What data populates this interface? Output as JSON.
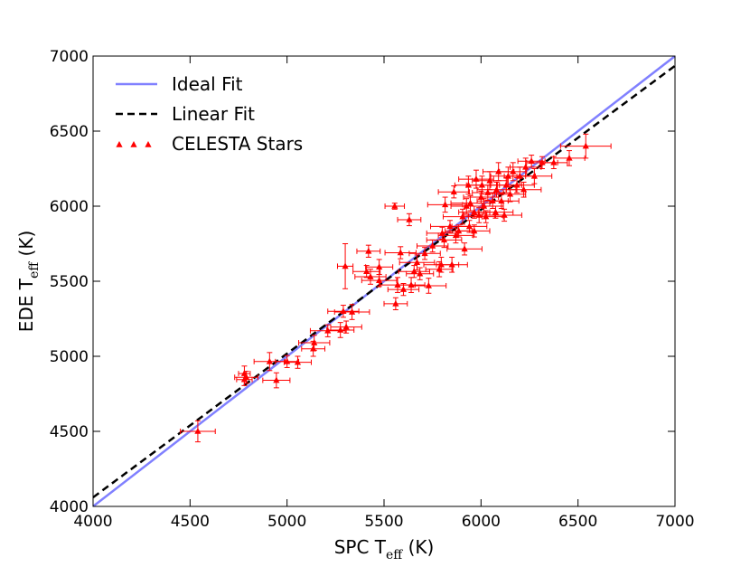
{
  "chart_data": {
    "type": "scatter",
    "x_label": {
      "main": "SPC T",
      "sub": "eff",
      "unit": " (K)"
    },
    "y_label": {
      "main": "EDE T",
      "sub": "eff",
      "unit": " (K)"
    },
    "xlim": [
      4000,
      7000
    ],
    "ylim": [
      4000,
      7000
    ],
    "xticks": [
      4000,
      4500,
      5000,
      5500,
      6000,
      6500,
      7000
    ],
    "yticks": [
      4000,
      4500,
      5000,
      5500,
      6000,
      6500,
      7000
    ],
    "legend": "upper left",
    "lines": [
      {
        "name": "Ideal Fit",
        "color": "#8080ff",
        "style": "solid",
        "x": [
          4000,
          7000
        ],
        "values": [
          4000,
          7000
        ]
      },
      {
        "name": "Linear Fit",
        "color": "#000000",
        "style": "dashed",
        "x": [
          4000,
          7000
        ],
        "values": [
          4060,
          6935
        ]
      }
    ],
    "series": [
      {
        "name": "CELESTA Stars",
        "color": "#ff0000",
        "x": [
          4540,
          4780,
          4780,
          4790,
          4910,
          4945,
          5000,
          5055,
          5135,
          5140,
          5210,
          5275,
          5305,
          5300,
          5335,
          5290,
          5420,
          5410,
          5430,
          5475,
          5475,
          5555,
          5560,
          5585,
          5630,
          5570,
          5600,
          5640,
          5655,
          5670,
          5685,
          5710,
          5730,
          5750,
          5785,
          5795,
          5800,
          5810,
          5840,
          5850,
          5860,
          5870,
          5885,
          5905,
          5915,
          5925,
          5935,
          5940,
          5945,
          5965,
          5975,
          5990,
          6000,
          6005,
          6015,
          6025,
          6035,
          6045,
          6060,
          6075,
          6080,
          6090,
          6105,
          6120,
          6130,
          6140,
          6150,
          6165,
          6185,
          6200,
          6220,
          6230,
          6260,
          6275,
          6315,
          6375,
          6455,
          6540,
          5815,
          5965
        ],
        "values": [
          4500,
          4885,
          4845,
          4860,
          4965,
          4840,
          4965,
          4960,
          5050,
          5090,
          5170,
          5175,
          5195,
          5600,
          5295,
          5300,
          5700,
          5565,
          5530,
          5505,
          5595,
          6000,
          5350,
          5690,
          5910,
          5475,
          5445,
          5475,
          5565,
          5625,
          5550,
          5685,
          5470,
          5735,
          5580,
          5610,
          5820,
          5775,
          5865,
          5610,
          6095,
          5805,
          5835,
          5930,
          5715,
          6000,
          6140,
          5865,
          6020,
          5960,
          6180,
          5940,
          6060,
          6140,
          6000,
          5930,
          6090,
          6170,
          6035,
          5960,
          6110,
          6230,
          6035,
          5940,
          6140,
          6200,
          6080,
          6230,
          6140,
          6200,
          6110,
          6260,
          6300,
          6200,
          6290,
          6290,
          6320,
          6400,
          6010,
          5835
        ],
        "xerr": [
          90,
          30,
          40,
          60,
          80,
          70,
          60,
          70,
          60,
          80,
          90,
          70,
          80,
          40,
          90,
          80,
          60,
          70,
          80,
          90,
          70,
          50,
          60,
          80,
          60,
          90,
          80,
          70,
          80,
          90,
          70,
          80,
          90,
          80,
          70,
          90,
          80,
          90,
          100,
          80,
          80,
          90,
          70,
          100,
          90,
          80,
          70,
          90,
          100,
          80,
          90,
          80,
          90,
          80,
          100,
          90,
          80,
          90,
          80,
          90,
          100,
          80,
          90,
          90,
          80,
          90,
          80,
          70,
          90,
          80,
          90,
          80,
          70,
          90,
          80,
          70,
          80,
          130,
          90,
          80
        ],
        "yerr": [
          70,
          50,
          40,
          40,
          60,
          50,
          40,
          40,
          50,
          50,
          40,
          50,
          40,
          150,
          50,
          40,
          40,
          40,
          50,
          40,
          50,
          20,
          40,
          40,
          40,
          50,
          40,
          50,
          40,
          50,
          40,
          40,
          50,
          40,
          50,
          50,
          40,
          50,
          40,
          50,
          40,
          50,
          40,
          50,
          40,
          50,
          60,
          40,
          50,
          40,
          60,
          50,
          40,
          60,
          50,
          40,
          50,
          60,
          50,
          40,
          50,
          60,
          50,
          40,
          50,
          60,
          50,
          60,
          50,
          60,
          50,
          60,
          40,
          50,
          40,
          40,
          50,
          80,
          50,
          40
        ]
      }
    ]
  }
}
